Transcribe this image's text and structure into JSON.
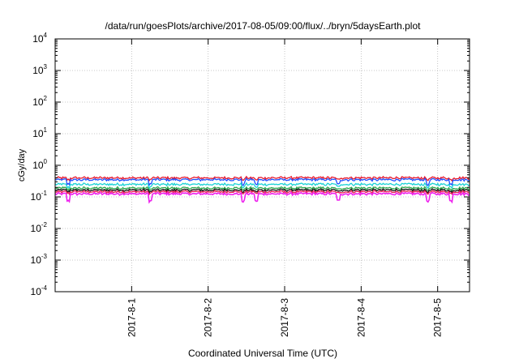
{
  "chart_data": {
    "type": "line",
    "title": "/data/run/goesPlots/archive/2017-08-05/09:00/flux/../bryn/5daysEarth.plot",
    "xlabel": "Coordinated Universal Time (UTC)",
    "ylabel": "cGy/day",
    "yscale": "log",
    "ylim": [
      0.0001,
      10000
    ],
    "y_ticks": [
      {
        "value": 0.0001,
        "base": "10",
        "exp": "-4"
      },
      {
        "value": 0.001,
        "base": "10",
        "exp": "-3"
      },
      {
        "value": 0.01,
        "base": "10",
        "exp": "-2"
      },
      {
        "value": 0.1,
        "base": "10",
        "exp": "-1"
      },
      {
        "value": 1,
        "base": "10",
        "exp": "0"
      },
      {
        "value": 10,
        "base": "10",
        "exp": "1"
      },
      {
        "value": 100,
        "base": "10",
        "exp": "2"
      },
      {
        "value": 1000,
        "base": "10",
        "exp": "3"
      },
      {
        "value": 10000,
        "base": "10",
        "exp": "4"
      }
    ],
    "xlim": [
      "2017-07-31T00:00",
      "2017-08-05T10:00"
    ],
    "x_ticks": [
      {
        "value": "2017-08-01T00:00",
        "label": "2017-8-1"
      },
      {
        "value": "2017-08-02T00:00",
        "label": "2017-8-2"
      },
      {
        "value": "2017-08-03T00:00",
        "label": "2017-8-3"
      },
      {
        "value": "2017-08-04T00:00",
        "label": "2017-8-4"
      },
      {
        "value": "2017-08-05T00:00",
        "label": "2017-8-5"
      }
    ],
    "grid": true,
    "legend": "none",
    "series": [
      {
        "color": "#e8192c",
        "base": 0.4,
        "dip": 0.88
      },
      {
        "color": "#1f4fff",
        "base": 0.35,
        "dip": 0.72
      },
      {
        "color": "#1ad3d6",
        "base": 0.25,
        "dip": 0.82
      },
      {
        "color": "#2ca84e",
        "base": 0.19,
        "dip": 0.9
      },
      {
        "color": "#111111",
        "base": 0.165,
        "dip": 0.9
      },
      {
        "color": "#e81c52",
        "base": 0.145,
        "dip": 0.9
      },
      {
        "color": "#ee22ee",
        "base": 0.125,
        "dip": 0.6
      }
    ],
    "dips": [
      "2017-07-31T04:00",
      "2017-08-01T06:00",
      "2017-08-02T11:00",
      "2017-08-02T15:00",
      "2017-08-03T17:00",
      "2017-08-04T21:00",
      "2017-08-05T04:00"
    ]
  }
}
